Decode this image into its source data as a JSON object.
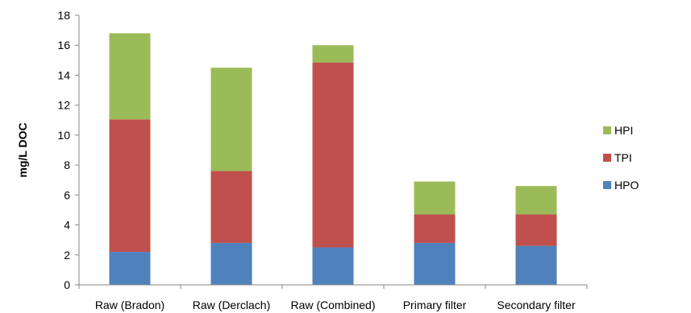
{
  "chart_data": {
    "type": "bar",
    "stacked": true,
    "title": "",
    "xlabel": "",
    "ylabel": "mg/L DOC",
    "ylim": [
      0,
      18
    ],
    "yticks": [
      0,
      2,
      4,
      6,
      8,
      10,
      12,
      14,
      16,
      18
    ],
    "grid": false,
    "legend_position": "right",
    "categories": [
      "Raw (Bradon)",
      "Raw (Derclach)",
      "Raw (Combined)",
      "Primary filter",
      "Secondary filter"
    ],
    "series": [
      {
        "name": "HPO",
        "color": "#4f81bd",
        "values": [
          2.2,
          2.8,
          2.5,
          2.8,
          2.6
        ]
      },
      {
        "name": "TPI",
        "color": "#c0504d",
        "values": [
          8.85,
          4.8,
          12.35,
          1.9,
          2.1
        ]
      },
      {
        "name": "HPI",
        "color": "#9bbb59",
        "values": [
          5.75,
          6.9,
          1.15,
          2.2,
          1.9
        ]
      }
    ],
    "legend_order": [
      "HPI",
      "TPI",
      "HPO"
    ]
  }
}
